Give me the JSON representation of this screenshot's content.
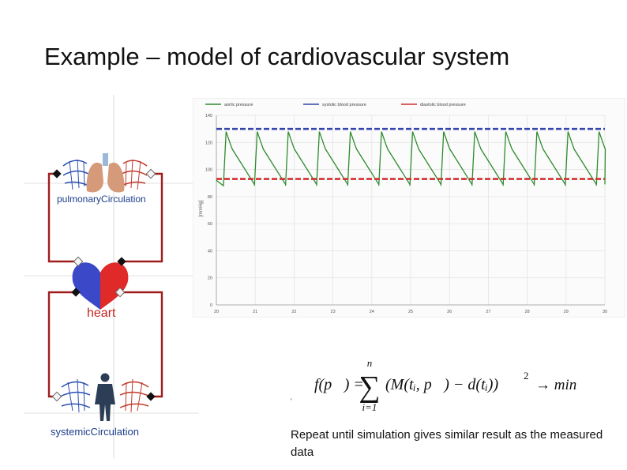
{
  "slide": {
    "title": "Example – model of cardiovascular system",
    "note": "Repeat until simulation gives similar result as the measured data"
  },
  "diagram": {
    "components": [
      {
        "label": "pulmonaryCirculation"
      },
      {
        "label": "heart"
      },
      {
        "label": "systemicCirculation"
      }
    ],
    "colors": {
      "wire": "#9e1c1c",
      "venous": "#2a4fb0",
      "arterial": "#c0392b",
      "heart_left": "#3b49c9",
      "heart_right": "#e02a2a"
    }
  },
  "formula": {
    "lhs": "f(p⃗) =",
    "sum_top": "n",
    "sum_bottom": "i=1",
    "body": "(M(tᵢ, p⃗) − d(tᵢ))",
    "power": "2",
    "rhs": "→ min"
  },
  "chart_data": {
    "type": "line",
    "legend": [
      {
        "name": "aortic pressure",
        "color": "#2e8b2e"
      },
      {
        "name": "systolic blood pressure",
        "color": "#3344aa"
      },
      {
        "name": "diastolic blood pressure",
        "color": "#d03030"
      }
    ],
    "ylabel": "[mmHg]",
    "xlim": [
      20,
      30
    ],
    "ylim": [
      0,
      140
    ],
    "xticks": [
      20,
      21,
      22,
      23,
      24,
      25,
      26,
      27,
      28,
      29,
      30
    ],
    "yticks": [
      0,
      20,
      40,
      60,
      80,
      100,
      120,
      140
    ],
    "systolic_level": 130,
    "diastolic_level": 93,
    "aortic_peaks_x": [
      20.25,
      21.05,
      21.85,
      22.65,
      23.45,
      24.25,
      25.05,
      25.85,
      26.65,
      27.45,
      28.25,
      29.05,
      29.85
    ],
    "aortic_max": 128,
    "aortic_min": 88,
    "grid": true,
    "legend_position": "top-left"
  }
}
